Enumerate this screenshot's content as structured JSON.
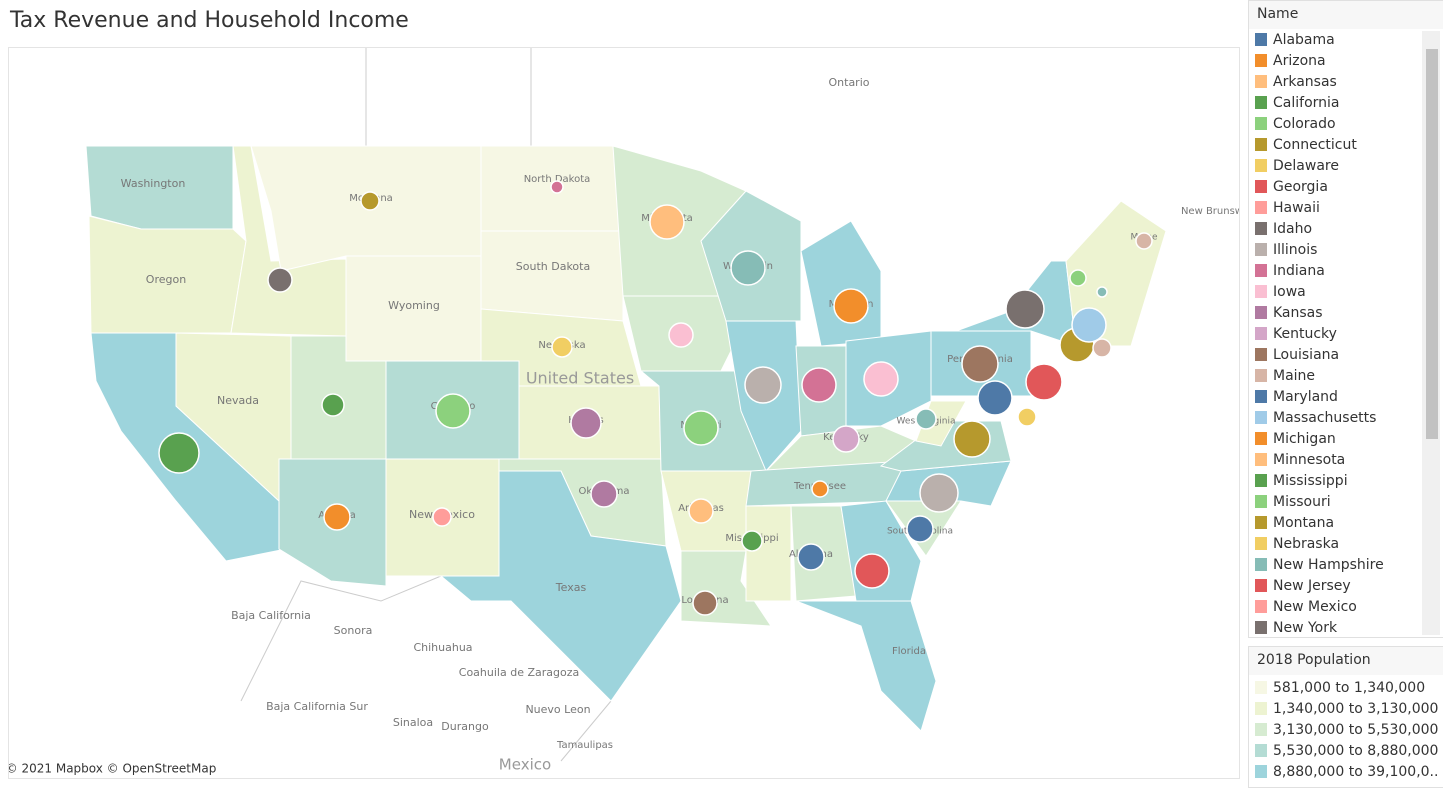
{
  "header": {
    "title": "Tax Revenue and Household Income"
  },
  "map": {
    "attribution": "© 2021 Mapbox © OpenStreetMap",
    "labels": [
      "Ontario",
      "Washington",
      "Oregon",
      "Nevada",
      "Wyoming",
      "Montana",
      "North Dakota",
      "South Dakota",
      "Nebraska",
      "United States",
      "Colorado",
      "New Mexico",
      "Texas",
      "Arizona",
      "Oklahoma",
      "Kansas",
      "Missouri",
      "Arkansas",
      "Louisiana",
      "Mississippi",
      "Alabama",
      "Tennessee",
      "Kentucky",
      "Wisconsin",
      "Michigan",
      "Minnesota",
      "Pennsylvania",
      "West Virginia",
      "Florida",
      "South Carolina",
      "Maine",
      "New Brunswick",
      "Baja California",
      "Sonora",
      "Chihuahua",
      "Coahuila de Zaragoza",
      "Baja California Sur",
      "Sinaloa",
      "Durango",
      "Nuevo Leon",
      "Tamaulipas",
      "Mexico"
    ]
  },
  "name_legend": {
    "title": "Name",
    "items": [
      {
        "name": "Alabama",
        "color": "#4e79a7"
      },
      {
        "name": "Arizona",
        "color": "#f28e2b"
      },
      {
        "name": "Arkansas",
        "color": "#ffbe7d"
      },
      {
        "name": "California",
        "color": "#59a14f"
      },
      {
        "name": "Colorado",
        "color": "#8cd17d"
      },
      {
        "name": "Connecticut",
        "color": "#b6992d"
      },
      {
        "name": "Delaware",
        "color": "#f1ce63"
      },
      {
        "name": "Georgia",
        "color": "#e15759"
      },
      {
        "name": "Hawaii",
        "color": "#ff9d9a"
      },
      {
        "name": "Idaho",
        "color": "#79706e"
      },
      {
        "name": "Illinois",
        "color": "#bab0ac"
      },
      {
        "name": "Indiana",
        "color": "#d37295"
      },
      {
        "name": "Iowa",
        "color": "#fabfd2"
      },
      {
        "name": "Kansas",
        "color": "#b07aa1"
      },
      {
        "name": "Kentucky",
        "color": "#d4a6c8"
      },
      {
        "name": "Louisiana",
        "color": "#9d7660"
      },
      {
        "name": "Maine",
        "color": "#d7b5a6"
      },
      {
        "name": "Maryland",
        "color": "#4e79a7"
      },
      {
        "name": "Massachusetts",
        "color": "#a0cbe8"
      },
      {
        "name": "Michigan",
        "color": "#f28e2b"
      },
      {
        "name": "Minnesota",
        "color": "#ffbe7d"
      },
      {
        "name": "Mississippi",
        "color": "#59a14f"
      },
      {
        "name": "Missouri",
        "color": "#8cd17d"
      },
      {
        "name": "Montana",
        "color": "#b6992d"
      },
      {
        "name": "Nebraska",
        "color": "#f1ce63"
      },
      {
        "name": "New Hampshire",
        "color": "#86bcb6"
      },
      {
        "name": "New Jersey",
        "color": "#e15759"
      },
      {
        "name": "New Mexico",
        "color": "#ff9d9a"
      },
      {
        "name": "New York",
        "color": "#79706e"
      }
    ]
  },
  "population_legend": {
    "title": "2018 Population",
    "items": [
      {
        "label": "581,000 to 1,340,000",
        "color": "#f6f7e4"
      },
      {
        "label": "1,340,000 to 3,130,000",
        "color": "#edf3d1"
      },
      {
        "label": "3,130,000 to 5,530,000",
        "color": "#d6ebd1"
      },
      {
        "label": "5,530,000 to 8,880,000",
        "color": "#b4dcd4"
      },
      {
        "label": "8,880,000 to 39,100,0..",
        "color": "#9dd4dc"
      }
    ]
  }
}
